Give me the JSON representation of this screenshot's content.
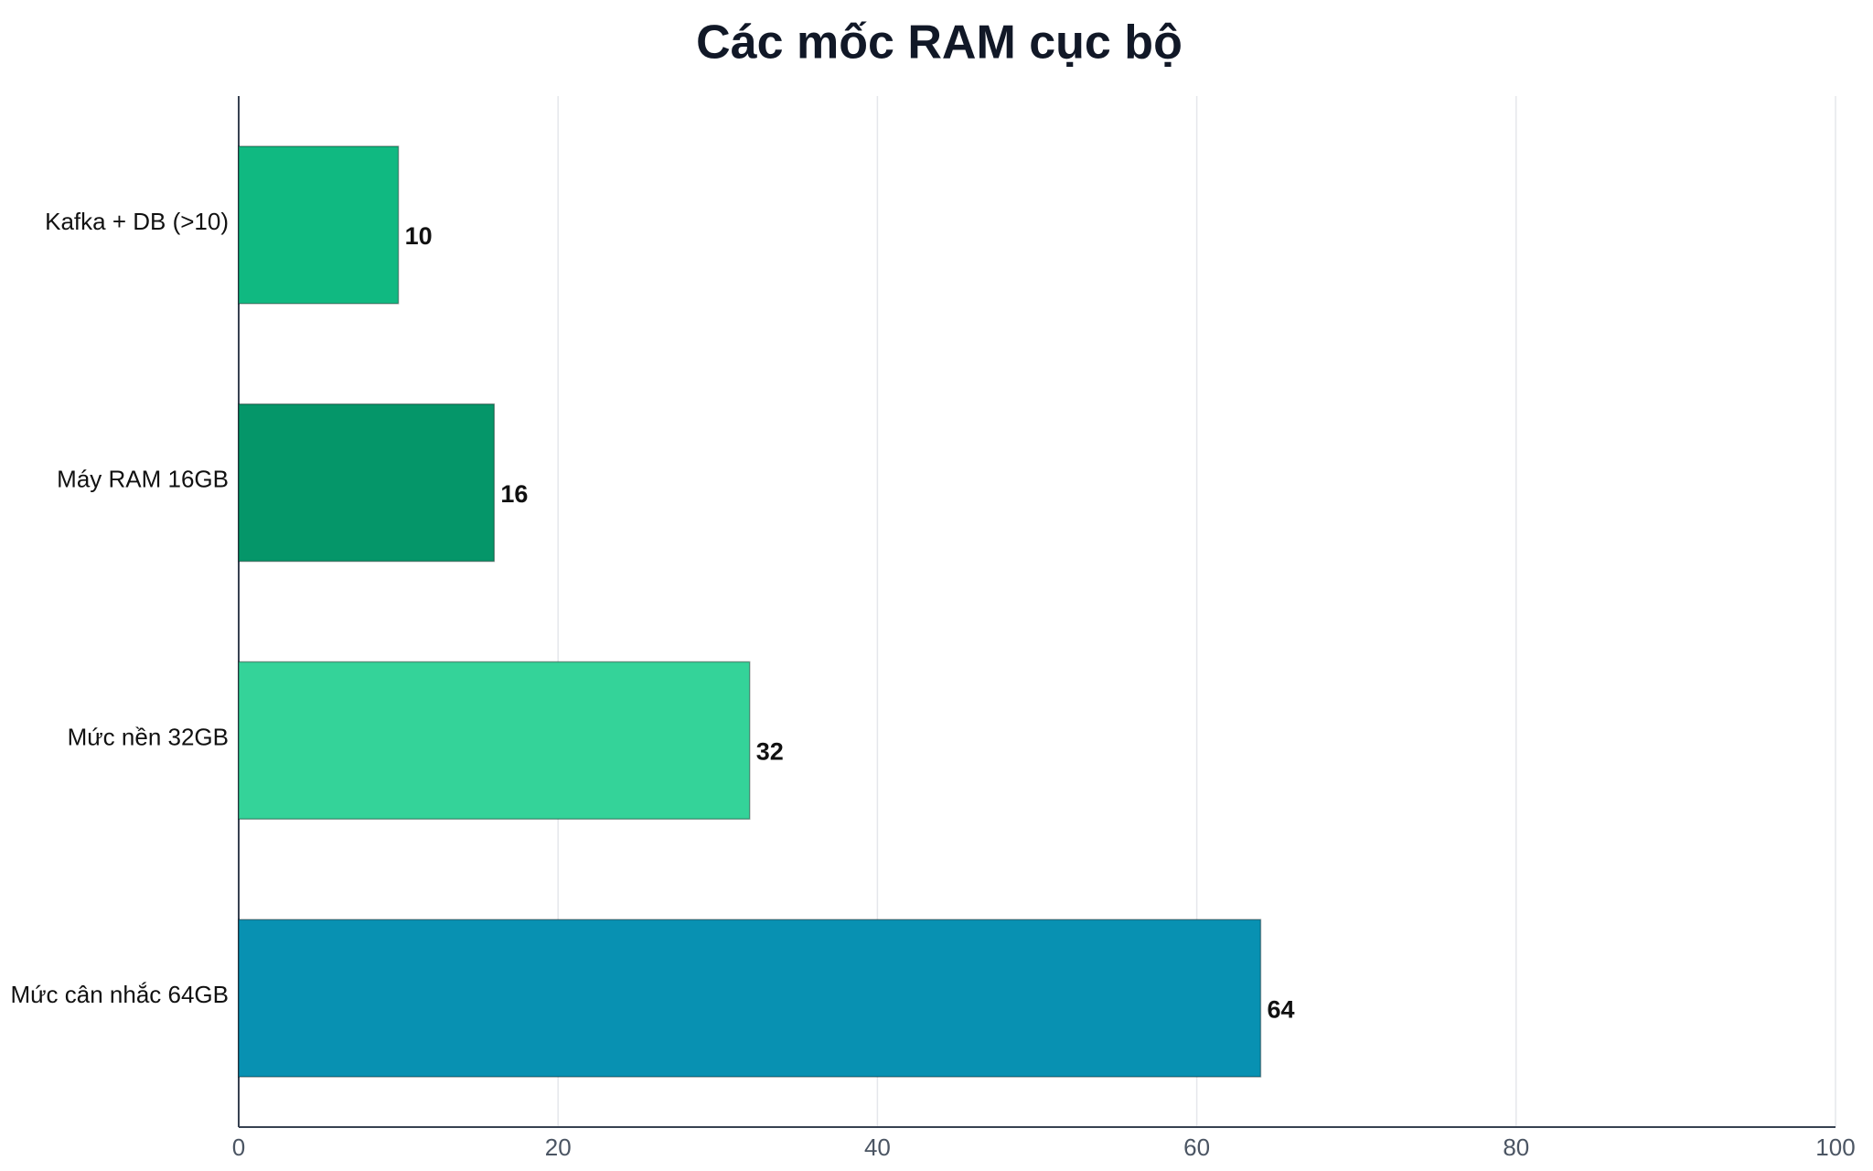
{
  "chart_data": {
    "type": "bar",
    "orientation": "horizontal",
    "title": "Các mốc RAM cục bộ",
    "categories": [
      "Kafka + DB (>10)",
      "Máy RAM 16GB",
      "Mức nền 32GB",
      "Mức cân nhắc 64GB"
    ],
    "values": [
      10,
      16,
      32,
      64
    ],
    "colors": [
      "#10b981",
      "#059669",
      "#34d399",
      "#0891b2"
    ],
    "xlim": [
      0,
      100
    ],
    "xticks": [
      0,
      20,
      40,
      60,
      80,
      100
    ],
    "grid": true
  }
}
